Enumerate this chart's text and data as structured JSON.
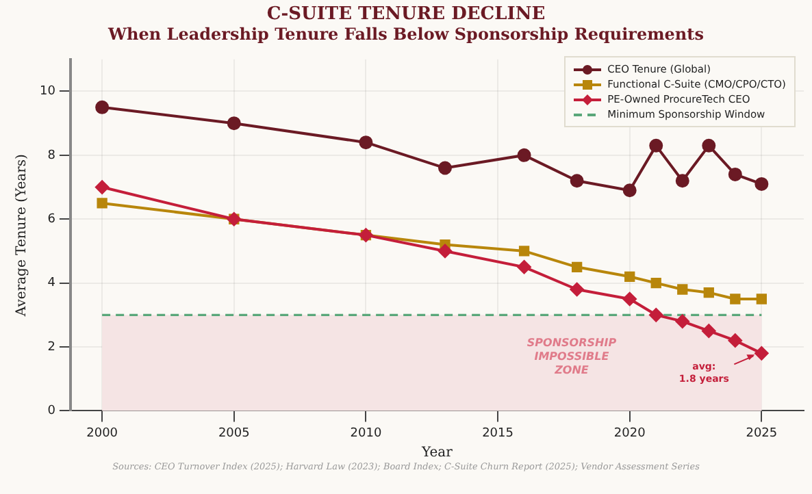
{
  "chart_data": {
    "type": "line",
    "title": "C-SUITE TENURE DECLINE",
    "subtitle": "When Leadership Tenure Falls Below Sponsorship Requirements",
    "xlabel": "Year",
    "ylabel": "Average Tenure (Years)",
    "x": [
      2000,
      2005,
      2010,
      2013,
      2016,
      2018,
      2020,
      2021,
      2022,
      2023,
      2024,
      2025
    ],
    "series": [
      {
        "name": "CEO Tenure (Global)",
        "color": "#6b1a24",
        "marker": "circle",
        "values": [
          9.5,
          9.0,
          8.4,
          7.6,
          8.0,
          7.2,
          6.9,
          8.3,
          7.2,
          8.3,
          7.4,
          7.1
        ]
      },
      {
        "name": "Functional C-Suite (CMO/CPO/CTO)",
        "color": "#b8860b",
        "marker": "square",
        "values": [
          6.5,
          6.0,
          5.5,
          5.2,
          5.0,
          4.5,
          4.2,
          4.0,
          3.8,
          3.7,
          3.5,
          3.5
        ]
      },
      {
        "name": "PE-Owned ProcureTech CEO",
        "color": "#c41e3a",
        "marker": "diamond",
        "values": [
          7.0,
          6.0,
          5.5,
          5.0,
          4.5,
          3.8,
          3.5,
          3.0,
          2.8,
          2.5,
          2.2,
          1.8
        ]
      }
    ],
    "xlim": [
      1998.8,
      2026.6
    ],
    "xticks": [
      2000,
      2005,
      2010,
      2015,
      2020,
      2025
    ],
    "ylim": [
      0,
      11
    ],
    "yticks": [
      0,
      2,
      4,
      6,
      8,
      10
    ],
    "ref_lines": [
      {
        "axis": "y",
        "value": 3,
        "label": "Minimum Sponsorship Window",
        "color": "#5aa77a",
        "line_style": "dashed"
      }
    ],
    "bands": [
      {
        "axis": "y",
        "from": 0,
        "to": 3,
        "label": "SPONSORSHIP IMPOSSIBLE ZONE",
        "color": "#f5e4e4"
      }
    ],
    "annotations": [
      {
        "text": "avg: 1.8 years",
        "x": 2025,
        "y": 1.8
      },
      "Sources: CEO Turnover Index (2025); Harvard Law (2023); Board Index; C-Suite Churn Report (2025); Vendor Assessment Series"
    ],
    "grid": true,
    "legend": "top right",
    "line_style": "solid"
  }
}
